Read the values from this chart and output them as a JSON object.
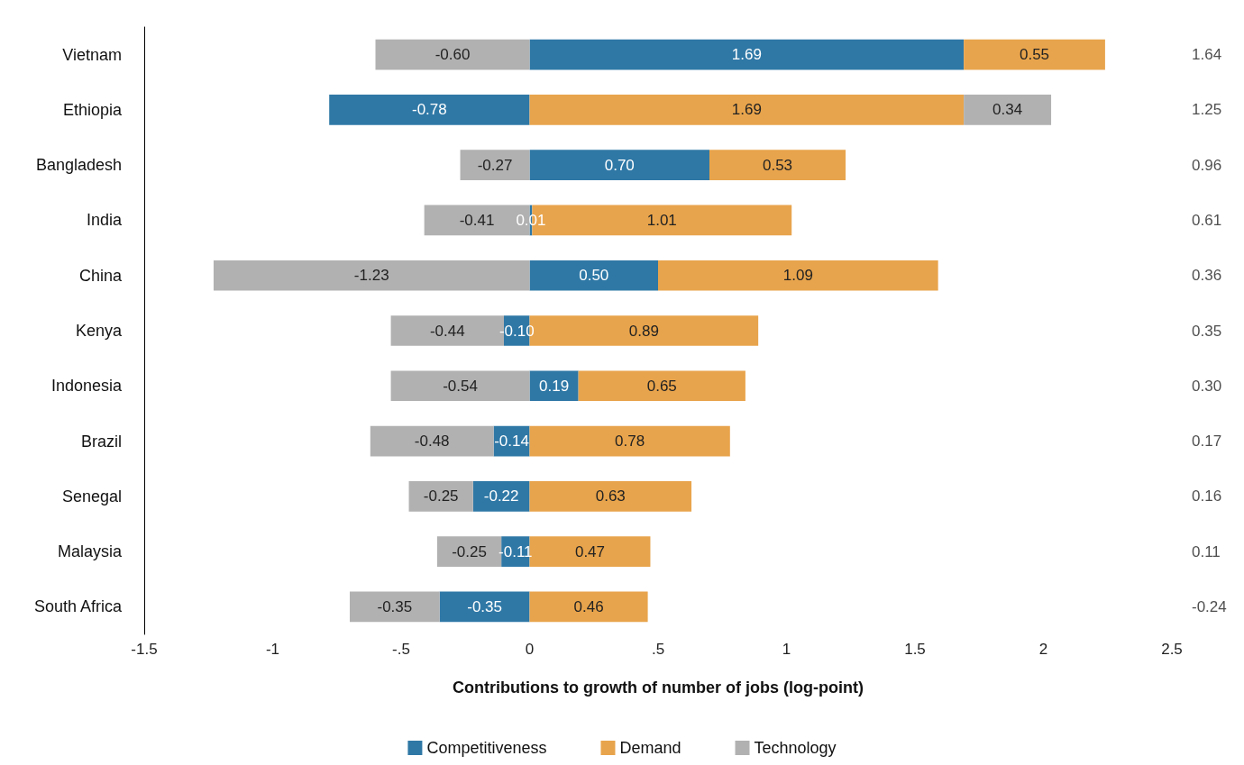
{
  "chart_data": {
    "type": "bar",
    "orientation": "horizontal",
    "stacked": true,
    "xlabel": "Contributions to growth of number of jobs (log-point)",
    "categories": [
      "Vietnam",
      "Ethiopia",
      "Bangladesh",
      "India",
      "China",
      "Kenya",
      "Indonesia",
      "Brazil",
      "Senegal",
      "Malaysia",
      "South Africa"
    ],
    "series": [
      {
        "name": "Competitiveness",
        "color": "#2f78a6",
        "values": [
          1.69,
          -0.78,
          0.7,
          0.01,
          0.5,
          -0.1,
          0.19,
          -0.14,
          -0.22,
          -0.11,
          -0.35
        ],
        "value_labels": [
          "1.69",
          "-0.78",
          "0.70",
          "0.01",
          "0.50",
          "-0.10",
          "0.19",
          "-0.14",
          "-0.22",
          "-0.11",
          "-0.35"
        ]
      },
      {
        "name": "Demand",
        "color": "#e8a44c",
        "values": [
          0.55,
          1.69,
          0.53,
          1.01,
          1.09,
          0.89,
          0.65,
          0.78,
          0.63,
          0.47,
          0.46
        ],
        "value_labels": [
          "0.55",
          "1.69",
          "0.53",
          "1.01",
          "1.09",
          "0.89",
          "0.65",
          "0.78",
          "0.63",
          "0.47",
          "0.46"
        ]
      },
      {
        "name": "Technology",
        "color": "#b1b1b1",
        "values": [
          -0.6,
          0.34,
          -0.27,
          -0.41,
          -1.23,
          -0.44,
          -0.54,
          -0.48,
          -0.25,
          -0.25,
          -0.35
        ],
        "value_labels": [
          "-0.60",
          "0.34",
          "-0.27",
          "-0.41",
          "-1.23",
          "-0.44",
          "-0.54",
          "-0.48",
          "-0.25",
          "-0.25",
          "-0.35"
        ]
      }
    ],
    "annotations": [
      "1.64",
      "1.25",
      "0.96",
      "0.61",
      "0.36",
      "0.35",
      "0.30",
      "0.17",
      "0.16",
      "0.11",
      "-0.24"
    ],
    "xlim": [
      -1.5,
      2.5
    ],
    "xticks": [
      {
        "value": -1.5,
        "label": "-1.5"
      },
      {
        "value": -1,
        "label": "-1"
      },
      {
        "value": -0.5,
        "label": "-.5"
      },
      {
        "value": 0,
        "label": "0"
      },
      {
        "value": 0.5,
        "label": ".5"
      },
      {
        "value": 1,
        "label": "1"
      },
      {
        "value": 1.5,
        "label": "1.5"
      },
      {
        "value": 2,
        "label": "2"
      },
      {
        "value": 2.5,
        "label": "2.5"
      }
    ],
    "legend": "bottom"
  }
}
